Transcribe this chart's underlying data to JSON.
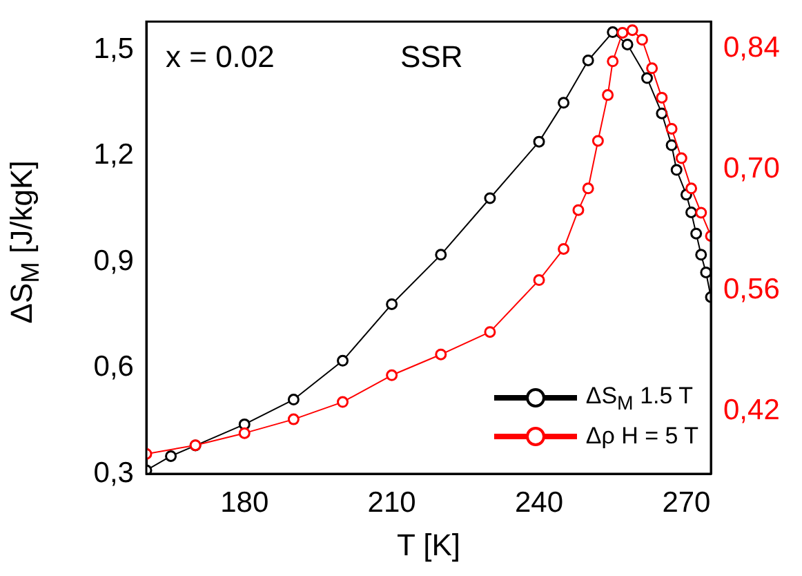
{
  "chart_data": {
    "type": "line",
    "xlabel": "T [K]",
    "ylabel": "ΔS$_{M}$ [J/kgK]",
    "annotations": [
      "x = 0.02",
      "SSR"
    ],
    "xlim": [
      160,
      275
    ],
    "xticks": [
      180,
      210,
      240,
      270
    ],
    "ylim": [
      0.3,
      1.58
    ],
    "yticks": [
      {
        "value": 0.3,
        "label": "0,3"
      },
      {
        "value": 0.6,
        "label": "0,6"
      },
      {
        "value": 0.9,
        "label": "0,9"
      },
      {
        "value": 1.2,
        "label": "1,2"
      },
      {
        "value": 1.5,
        "label": "1,5"
      }
    ],
    "y2lim": [
      0.348,
      0.871
    ],
    "y2ticks": [
      {
        "value": 0.42,
        "label": "0,42"
      },
      {
        "value": 0.56,
        "label": "0,56"
      },
      {
        "value": 0.7,
        "label": "0,70"
      },
      {
        "value": 0.84,
        "label": "0,84"
      }
    ],
    "grid": false,
    "legend": "bottom right",
    "marker": "circle",
    "line_style": "solid",
    "series": [
      {
        "name": "ΔS$_{M}$ 1.5 T",
        "color": "#000000",
        "x": [
          160,
          165,
          170,
          180,
          190,
          200,
          210,
          220,
          230,
          240,
          245,
          250,
          255,
          258,
          262,
          265,
          267,
          268,
          270,
          271,
          272,
          273,
          274,
          275
        ],
        "values": [
          0.31,
          0.35,
          0.38,
          0.44,
          0.51,
          0.62,
          0.78,
          0.92,
          1.08,
          1.24,
          1.35,
          1.47,
          1.55,
          1.515,
          1.42,
          1.32,
          1.23,
          1.16,
          1.09,
          1.04,
          0.98,
          0.92,
          0.87,
          0.8
        ]
      },
      {
        "name": "Δρ H = 5 T",
        "color": "#ff0000",
        "axis": "y2",
        "x": [
          160,
          170,
          180,
          190,
          200,
          210,
          220,
          230,
          240,
          245,
          248,
          250,
          252,
          254,
          255,
          257,
          259,
          261,
          263,
          265,
          267,
          269,
          271,
          273,
          275
        ],
        "values": [
          0.371,
          0.381,
          0.395,
          0.411,
          0.431,
          0.462,
          0.486,
          0.512,
          0.572,
          0.608,
          0.653,
          0.678,
          0.733,
          0.786,
          0.825,
          0.858,
          0.861,
          0.85,
          0.817,
          0.783,
          0.747,
          0.713,
          0.678,
          0.65,
          0.623
        ]
      }
    ]
  }
}
